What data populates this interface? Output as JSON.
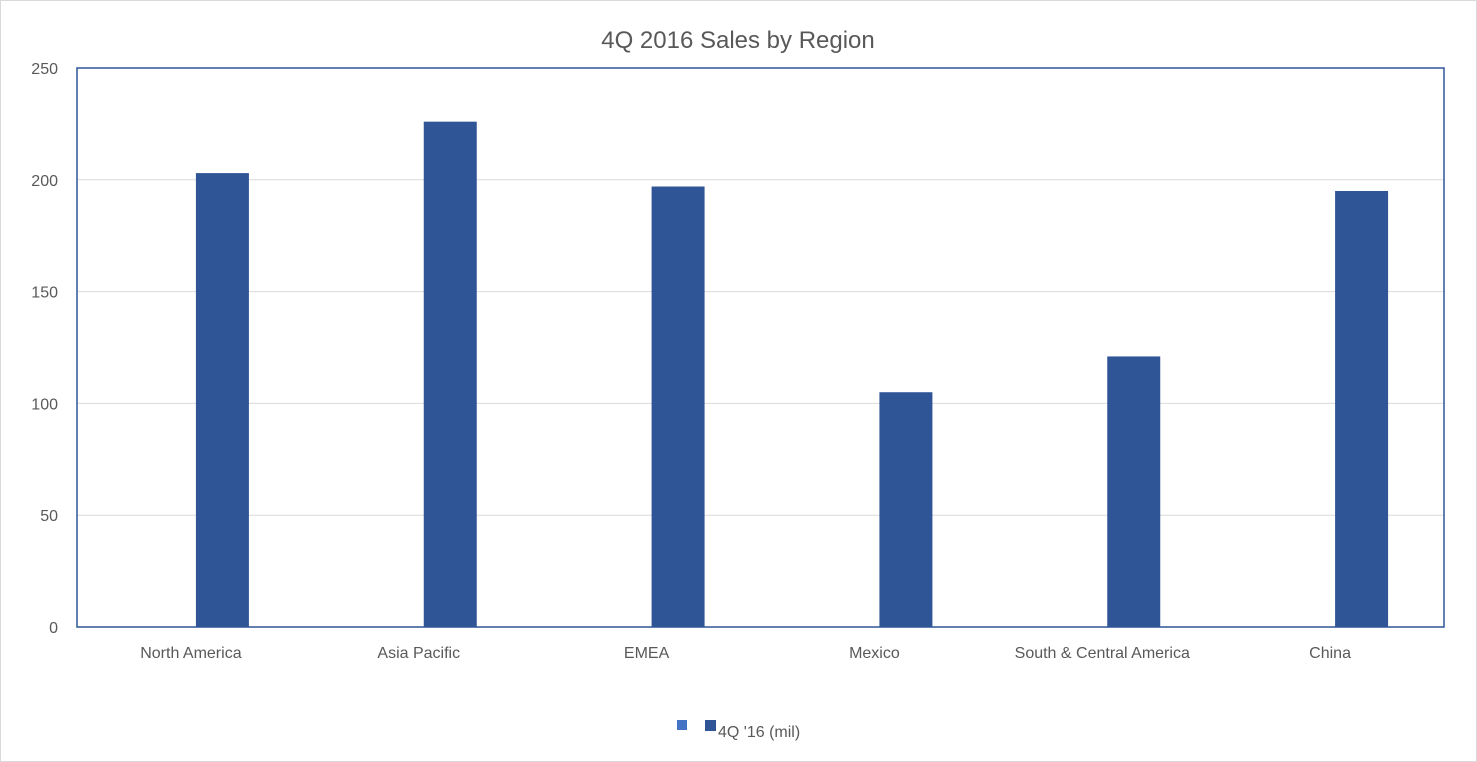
{
  "chart_data": {
    "type": "bar",
    "title": "4Q 2016 Sales by Region",
    "xlabel": "",
    "ylabel": "",
    "categories": [
      "North America",
      "Asia Pacific",
      "EMEA",
      "Mexico",
      "South & Central America",
      "China"
    ],
    "series": [
      {
        "name": "",
        "values": [
          0,
          0,
          0,
          0,
          0,
          0
        ],
        "color": "#4472c4"
      },
      {
        "name": "4Q '16 (mil)",
        "values": [
          203,
          226,
          197,
          105,
          121,
          195
        ],
        "color": "#2f5597"
      }
    ],
    "ylim": [
      0,
      250
    ],
    "yticks": [
      0,
      50,
      100,
      150,
      200,
      250
    ],
    "grid": true,
    "legend_position": "bottom"
  }
}
